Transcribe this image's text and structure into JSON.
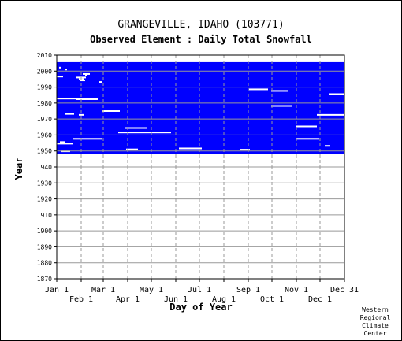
{
  "title": "GRANGEVILLE, IDAHO   (103771)",
  "subtitle": "Observed Element : Daily Total Snowfall",
  "credit": [
    "Western",
    "Regional",
    "Climate",
    "Center"
  ],
  "colors": {
    "coverage": "#0000ff",
    "grid": "#999999",
    "axis": "#000000",
    "background": "#ffffff"
  },
  "chart_data": {
    "type": "heatmap",
    "xlabel": "Day of Year",
    "ylabel": "Year",
    "xlim": [
      0,
      365
    ],
    "ylim": [
      1870,
      2010
    ],
    "x_ticks_upper": [
      {
        "label": "Jan 1",
        "day": 0
      },
      {
        "label": "Mar 1",
        "day": 59
      },
      {
        "label": "May 1",
        "day": 120
      },
      {
        "label": "Jul 1",
        "day": 181
      },
      {
        "label": "Sep 1",
        "day": 243
      },
      {
        "label": "Nov 1",
        "day": 304
      },
      {
        "label": "Dec 31",
        "day": 365
      }
    ],
    "x_ticks_lower": [
      {
        "label": "Feb 1",
        "day": 31
      },
      {
        "label": "Apr 1",
        "day": 90
      },
      {
        "label": "Jun 1",
        "day": 151
      },
      {
        "label": "Aug 1",
        "day": 212
      },
      {
        "label": "Oct 1",
        "day": 273
      },
      {
        "label": "Dec 1",
        "day": 334
      }
    ],
    "y_ticks": [
      1870,
      1880,
      1890,
      1900,
      1910,
      1920,
      1930,
      1940,
      1950,
      1960,
      1970,
      1980,
      1990,
      2000,
      2010
    ],
    "coverage": {
      "start_year": 1948.2,
      "end_year": 2005.6,
      "start_day": 0,
      "end_day": 365
    },
    "gaps": [
      {
        "year": 2002.2,
        "day_start": 3,
        "day_end": 6
      },
      {
        "year": 2001.0,
        "day_start": 10,
        "day_end": 13
      },
      {
        "year": 1998.2,
        "day_start": 33,
        "day_end": 42
      },
      {
        "year": 1997.4,
        "day_start": 36,
        "day_end": 39
      },
      {
        "year": 1996.6,
        "day_start": 0,
        "day_end": 8
      },
      {
        "year": 1996.0,
        "day_start": 24,
        "day_end": 37
      },
      {
        "year": 1995.0,
        "day_start": 28,
        "day_end": 34
      },
      {
        "year": 1994.2,
        "day_start": 30,
        "day_end": 36
      },
      {
        "year": 1993.2,
        "day_start": 54,
        "day_end": 58
      },
      {
        "year": 1988.6,
        "day_start": 244,
        "day_end": 268
      },
      {
        "year": 1987.6,
        "day_start": 272,
        "day_end": 293
      },
      {
        "year": 1985.6,
        "day_start": 345,
        "day_end": 365
      },
      {
        "year": 1982.8,
        "day_start": 0,
        "day_end": 25
      },
      {
        "year": 1982.4,
        "day_start": 25,
        "day_end": 52
      },
      {
        "year": 1978.2,
        "day_start": 272,
        "day_end": 298
      },
      {
        "year": 1975.0,
        "day_start": 58,
        "day_end": 80
      },
      {
        "year": 1973.2,
        "day_start": 10,
        "day_end": 22
      },
      {
        "year": 1972.6,
        "day_start": 28,
        "day_end": 35
      },
      {
        "year": 1972.6,
        "day_start": 330,
        "day_end": 365
      },
      {
        "year": 1965.4,
        "day_start": 304,
        "day_end": 330
      },
      {
        "year": 1964.4,
        "day_start": 87,
        "day_end": 115
      },
      {
        "year": 1961.6,
        "day_start": 78,
        "day_end": 145
      },
      {
        "year": 1957.6,
        "day_start": 21,
        "day_end": 58
      },
      {
        "year": 1957.6,
        "day_start": 303,
        "day_end": 333
      },
      {
        "year": 1955.6,
        "day_start": 4,
        "day_end": 11
      },
      {
        "year": 1954.6,
        "day_start": 0,
        "day_end": 20
      },
      {
        "year": 1953.2,
        "day_start": 340,
        "day_end": 347
      },
      {
        "year": 1951.6,
        "day_start": 155,
        "day_end": 184
      },
      {
        "year": 1951.0,
        "day_start": 88,
        "day_end": 103
      },
      {
        "year": 1950.8,
        "day_start": 232,
        "day_end": 245
      },
      {
        "year": 1949.8,
        "day_start": 6,
        "day_end": 17
      }
    ]
  }
}
